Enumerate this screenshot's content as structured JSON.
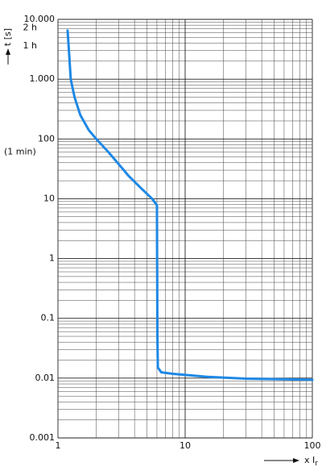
{
  "chart_data": {
    "type": "line",
    "y_label": "t [s]",
    "x_label": {
      "text": "x I",
      "subscript": "r"
    },
    "log_x": true,
    "log_y": true,
    "grid": true,
    "minor_grid": true,
    "xlim": [
      1,
      100
    ],
    "xticks": [
      1,
      10,
      100
    ],
    "ylim": [
      0.001,
      10000
    ],
    "yticks": [
      {
        "value": 10000,
        "label": "10.000"
      },
      {
        "value": 1000,
        "label": "1.000"
      },
      100,
      10,
      1,
      0.1,
      0.01,
      0.001
    ],
    "annotations": [
      {
        "label": "2 h",
        "value": 7200
      },
      {
        "label": "1 h",
        "value": 3600
      },
      {
        "label": "(1 min)",
        "value": 60
      }
    ],
    "series": [
      {
        "color": "#1e88e5",
        "x": [
          1.19,
          1.22,
          1.26,
          1.35,
          1.5,
          1.75,
          2,
          2.5,
          3,
          3.6,
          4.5,
          5.5,
          6,
          6.05,
          6.1,
          6.5,
          8,
          15,
          30,
          100
        ],
        "values": [
          6500,
          3000,
          1000,
          500,
          250,
          140,
          100,
          60,
          38,
          24,
          15,
          10,
          7.8,
          0.05,
          0.015,
          0.0125,
          0.0118,
          0.0105,
          0.0098,
          0.0094
        ]
      }
    ]
  }
}
